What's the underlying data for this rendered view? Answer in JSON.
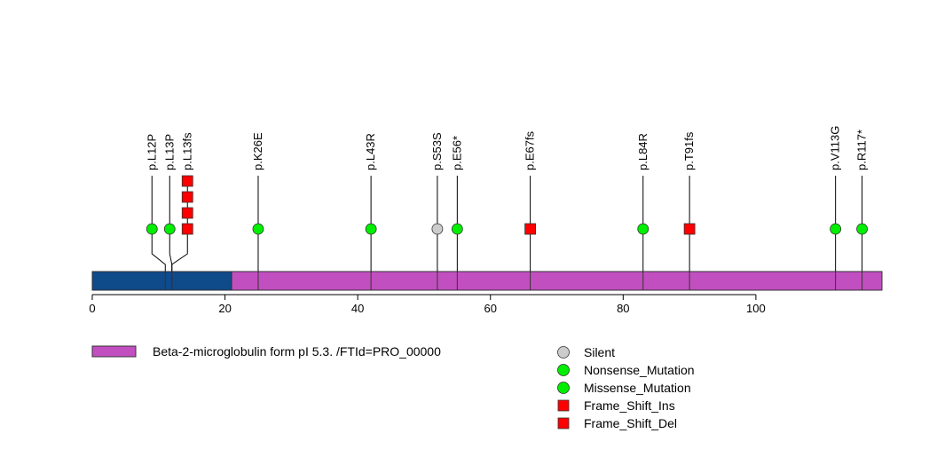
{
  "chart_data": {
    "type": "lollipop",
    "title": "",
    "xlabel": "",
    "ylabel": "",
    "xlim": [
      0,
      119
    ],
    "x_ticks": [
      0,
      20,
      40,
      60,
      80,
      100
    ],
    "protein_length": 119,
    "domains": [
      {
        "name": "",
        "start": 0,
        "end": 21,
        "color": "#0f4a8a"
      },
      {
        "name": "Beta-2-microglobulin form pI 5.3. /FTId=PRO_00000",
        "start": 21,
        "end": 119,
        "color": "#c24fc0"
      }
    ],
    "mutations": [
      {
        "label": "p.L12P",
        "position": 11,
        "type": "Missense_Mutation",
        "shape": "circle",
        "color": "#00ee00",
        "count": 1
      },
      {
        "label": "p.L13P",
        "position": 12,
        "type": "Missense_Mutation",
        "shape": "circle",
        "color": "#00ee00",
        "count": 1
      },
      {
        "label": "p.L13fs",
        "position": 12,
        "type": "Frame_Shift",
        "shape": "square",
        "color": "#ff0000",
        "count": 4
      },
      {
        "label": "p.K26E",
        "position": 25,
        "type": "Missense_Mutation",
        "shape": "circle",
        "color": "#00ee00",
        "count": 1
      },
      {
        "label": "p.L43R",
        "position": 42,
        "type": "Missense_Mutation",
        "shape": "circle",
        "color": "#00ee00",
        "count": 1
      },
      {
        "label": "p.S53S",
        "position": 52,
        "type": "Silent",
        "shape": "circle",
        "color": "#cccccc",
        "count": 1
      },
      {
        "label": "p.E56*",
        "position": 55,
        "type": "Nonsense_Mutation",
        "shape": "circle",
        "color": "#00ee00",
        "count": 1
      },
      {
        "label": "p.E67fs",
        "position": 66,
        "type": "Frame_Shift",
        "shape": "square",
        "color": "#ff0000",
        "count": 1
      },
      {
        "label": "p.L84R",
        "position": 83,
        "type": "Missense_Mutation",
        "shape": "circle",
        "color": "#00ee00",
        "count": 1
      },
      {
        "label": "p.T91fs",
        "position": 90,
        "type": "Frame_Shift",
        "shape": "square",
        "color": "#ff0000",
        "count": 1
      },
      {
        "label": "p.V113G",
        "position": 112,
        "type": "Missense_Mutation",
        "shape": "circle",
        "color": "#00ee00",
        "count": 1
      },
      {
        "label": "p.R117*",
        "position": 116,
        "type": "Nonsense_Mutation",
        "shape": "circle",
        "color": "#00ee00",
        "count": 1
      }
    ],
    "legend": {
      "domain_entries": [
        {
          "label": "Beta-2-microglobulin form pI 5.3. /FTId=PRO_00000",
          "color": "#c24fc0"
        }
      ],
      "mutation_entries": [
        {
          "label": "Silent",
          "shape": "circle",
          "color": "#cccccc"
        },
        {
          "label": "Nonsense_Mutation",
          "shape": "circle",
          "color": "#00ee00"
        },
        {
          "label": "Missense_Mutation",
          "shape": "circle",
          "color": "#00ee00"
        },
        {
          "label": "Frame_Shift_Ins",
          "shape": "square",
          "color": "#ff0000"
        },
        {
          "label": "Frame_Shift_Del",
          "shape": "square",
          "color": "#ff0000"
        }
      ]
    }
  }
}
